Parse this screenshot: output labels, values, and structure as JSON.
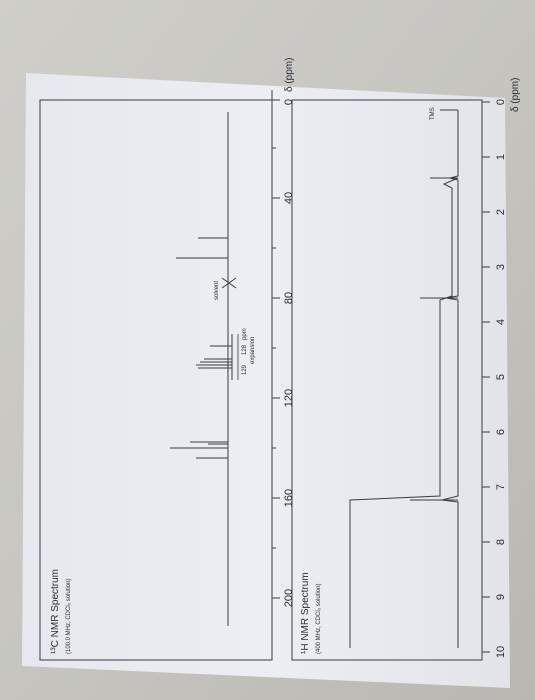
{
  "c13": {
    "title": "¹³C NMR Spectrum",
    "conditions": "(100.0 MHz, CDCl₃ solution)",
    "ticks": [
      "200",
      "160",
      "120",
      "80",
      "40",
      "0"
    ],
    "axis_label": "δ (ppm)",
    "expansion_label": "expansion",
    "expansion_ticks": [
      "129",
      "128",
      "ppm"
    ],
    "solvent_label": "solvent"
  },
  "h1": {
    "title": "¹H NMR Spectrum",
    "conditions": "(400 MHz, CDCl₃ solution)",
    "ticks": [
      "10",
      "9",
      "8",
      "7",
      "6",
      "5",
      "4",
      "3",
      "2",
      "1",
      "0"
    ],
    "axis_label": "δ (ppm)",
    "tms_label": "TMS"
  }
}
